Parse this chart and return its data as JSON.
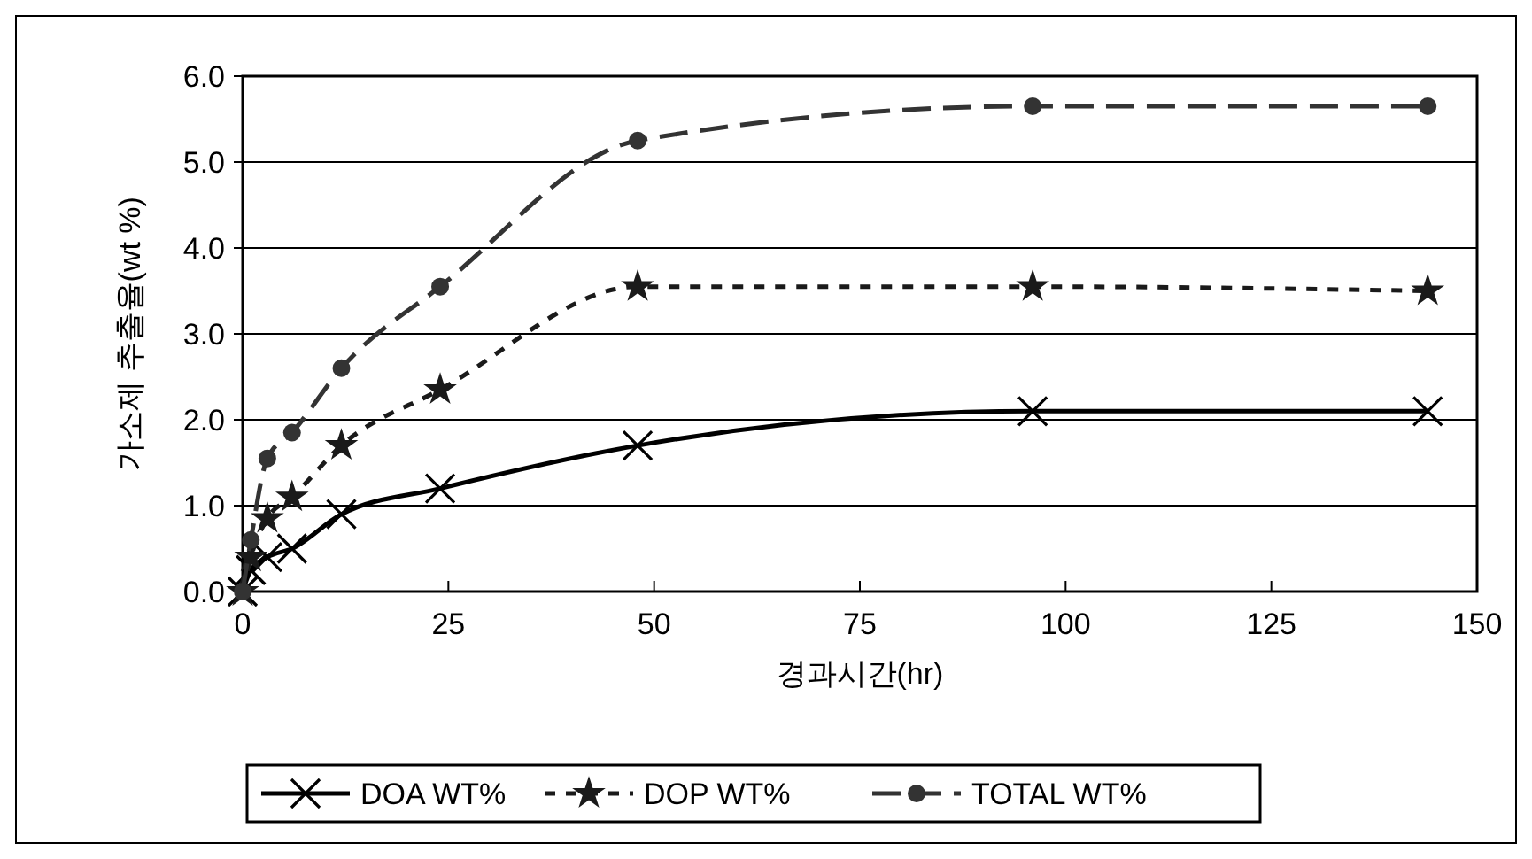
{
  "chart_data": {
    "type": "line",
    "xlabel": "경과시간(hr)",
    "ylabel": "가소제 추출율(wt %)",
    "xlim": [
      0,
      150
    ],
    "xticks": [
      0,
      25,
      50,
      75,
      100,
      125,
      150
    ],
    "ylim": [
      0,
      6
    ],
    "yticks": [
      {
        "value": 0,
        "label": "0.0"
      },
      {
        "value": 1,
        "label": "1.0"
      },
      {
        "value": 2,
        "label": "2.0"
      },
      {
        "value": 3,
        "label": "3.0"
      },
      {
        "value": 4,
        "label": "4.0"
      },
      {
        "value": 5,
        "label": "5.0"
      },
      {
        "value": 6,
        "label": "6.0"
      }
    ],
    "grid": "y",
    "legend": "bottom",
    "series": [
      {
        "name": "DOA WT%",
        "color": "#000000",
        "marker": "cross",
        "line_style": "solid",
        "x": [
          0,
          1,
          3,
          6,
          12,
          24,
          48,
          96,
          144
        ],
        "values": [
          0,
          0.25,
          0.4,
          0.5,
          0.9,
          1.2,
          1.7,
          2.1,
          2.1
        ]
      },
      {
        "name": "DOP WT%",
        "color": "#1a1a1a",
        "marker": "star",
        "line_style": "dotted",
        "x": [
          0,
          1,
          3,
          6,
          12,
          24,
          48,
          96,
          144
        ],
        "values": [
          0,
          0.4,
          0.85,
          1.1,
          1.7,
          2.35,
          3.55,
          3.55,
          3.5
        ]
      },
      {
        "name": "TOTAL WT%",
        "color": "#333333",
        "marker": "circle",
        "line_style": "dashed",
        "x": [
          0,
          1,
          3,
          6,
          12,
          24,
          48,
          96,
          144
        ],
        "values": [
          0,
          0.6,
          1.55,
          1.85,
          2.6,
          3.55,
          5.25,
          5.65,
          5.65
        ]
      }
    ]
  }
}
